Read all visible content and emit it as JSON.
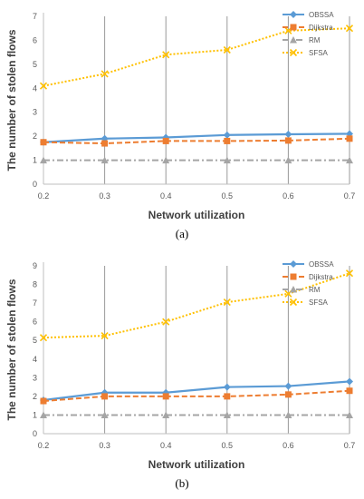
{
  "chart_data": [
    {
      "type": "line",
      "caption": "(a)",
      "xlabel": "Network utilization",
      "ylabel": "The number of stolen flows",
      "categories": [
        "0.2",
        "0.3",
        "0.4",
        "0.5",
        "0.6",
        "0.7"
      ],
      "ylim": [
        0,
        7
      ],
      "yticks": [
        "0",
        "1",
        "2",
        "3",
        "4",
        "5",
        "6",
        "7"
      ],
      "grid": "vertical",
      "legend_position": "top-right",
      "series": [
        {
          "name": "OBSSA",
          "values": [
            1.75,
            1.9,
            1.95,
            2.05,
            2.08,
            2.1
          ],
          "color": "#5B9BD5",
          "marker": "diamond",
          "dash": "solid"
        },
        {
          "name": "Dijkstra",
          "values": [
            1.75,
            1.7,
            1.8,
            1.8,
            1.82,
            1.9
          ],
          "color": "#ED7D31",
          "marker": "square",
          "dash": "dashed"
        },
        {
          "name": "RM",
          "values": [
            1.0,
            1.0,
            1.0,
            1.0,
            1.0,
            1.0
          ],
          "color": "#A5A5A5",
          "marker": "triangle",
          "dash": "dashdot"
        },
        {
          "name": "SFSA",
          "values": [
            4.1,
            4.6,
            5.4,
            5.6,
            6.4,
            6.5
          ],
          "color": "#FFC000",
          "marker": "x",
          "dash": "dotted"
        }
      ]
    },
    {
      "type": "line",
      "caption": "(b)",
      "xlabel": "Network utilization",
      "ylabel": "The number of stolen flows",
      "categories": [
        "0.2",
        "0.3",
        "0.4",
        "0.5",
        "0.6",
        "0.7"
      ],
      "ylim": [
        0,
        9
      ],
      "yticks": [
        "0",
        "1",
        "2",
        "3",
        "4",
        "5",
        "6",
        "7",
        "8",
        "9"
      ],
      "grid": "vertical",
      "legend_position": "top-right",
      "series": [
        {
          "name": "OBSSA",
          "values": [
            1.8,
            2.2,
            2.2,
            2.5,
            2.55,
            2.8
          ],
          "color": "#5B9BD5",
          "marker": "diamond",
          "dash": "solid"
        },
        {
          "name": "Dijkstra",
          "values": [
            1.75,
            2.0,
            2.0,
            2.0,
            2.1,
            2.3
          ],
          "color": "#ED7D31",
          "marker": "square",
          "dash": "dashed"
        },
        {
          "name": "RM",
          "values": [
            1.0,
            1.0,
            1.0,
            1.0,
            1.0,
            1.0
          ],
          "color": "#A5A5A5",
          "marker": "triangle",
          "dash": "dashdot"
        },
        {
          "name": "SFSA",
          "values": [
            5.15,
            5.25,
            6.0,
            7.05,
            7.5,
            8.6
          ],
          "color": "#FFC000",
          "marker": "x",
          "dash": "dotted"
        }
      ]
    }
  ]
}
